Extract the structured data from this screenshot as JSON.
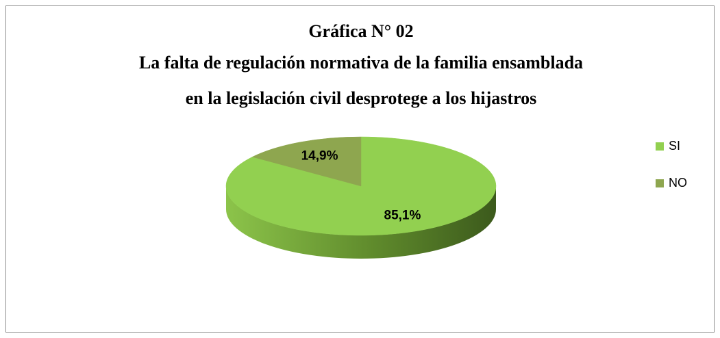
{
  "chart_data": {
    "type": "pie",
    "title": "Gráfica N° 02",
    "subtitle": [
      "La falta de regulación normativa de la familia ensamblada",
      "en la legislación civil  desprotege a los hijastros"
    ],
    "categories": [
      "SI",
      "NO"
    ],
    "values": [
      85.1,
      14.9
    ],
    "value_labels": [
      "85,1%",
      "14,9%"
    ],
    "colors": [
      "#92d050",
      "#8ea64f"
    ],
    "legend": "right"
  }
}
